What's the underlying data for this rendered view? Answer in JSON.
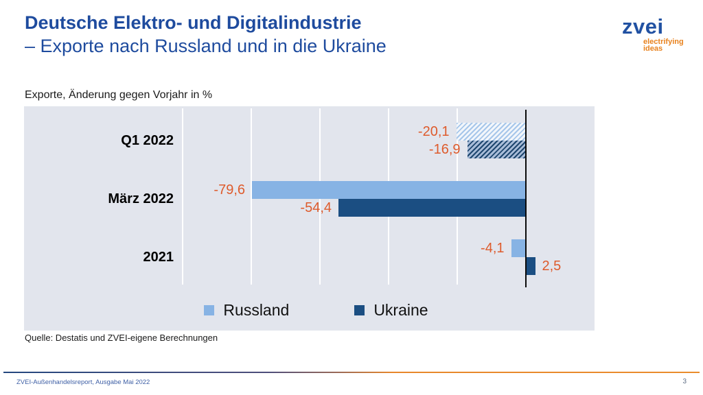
{
  "header": {
    "title_line1": "Deutsche Elektro- und Digitalindustrie",
    "title_line2": "– Exporte nach Russland und in die Ukraine",
    "logo": {
      "text": "zvei",
      "tagline_line1": "electrifying",
      "tagline_line2": "ideas"
    }
  },
  "subtitle": "Exporte, Änderung gegen Vorjahr in %",
  "chart_data": {
    "type": "bar",
    "orientation": "horizontal",
    "title": "Exporte, Änderung gegen Vorjahr in %",
    "categories": [
      "Q1 2022",
      "März 2022",
      "2021"
    ],
    "series": [
      {
        "name": "Russland",
        "color": "#87B3E4",
        "values": [
          -20.1,
          -79.6,
          -4.1
        ],
        "labels": [
          "-20,1",
          "-79,6",
          "-4,1"
        ]
      },
      {
        "name": "Ukraine",
        "color": "#1B4E82",
        "values": [
          -16.9,
          -54.4,
          2.5
        ],
        "labels": [
          "-16,9",
          "-54,4",
          "2,5"
        ]
      }
    ],
    "hatched_categories": [
      "Q1 2022"
    ],
    "xlim": [
      -100,
      20
    ],
    "gridline_step": 20,
    "grid": true,
    "label_color": "#DE5B2C",
    "legend_position": "bottom",
    "plot_background": "#E2E5ED"
  },
  "source": "Quelle: Destatis und ZVEI-eigene Berechnungen",
  "footer": {
    "report": "ZVEI-Außenhandelsreport, Ausgabe Mai 2022",
    "page": "3"
  },
  "brand": {
    "blue": "#1E4B9E",
    "orange": "#E8821E"
  }
}
